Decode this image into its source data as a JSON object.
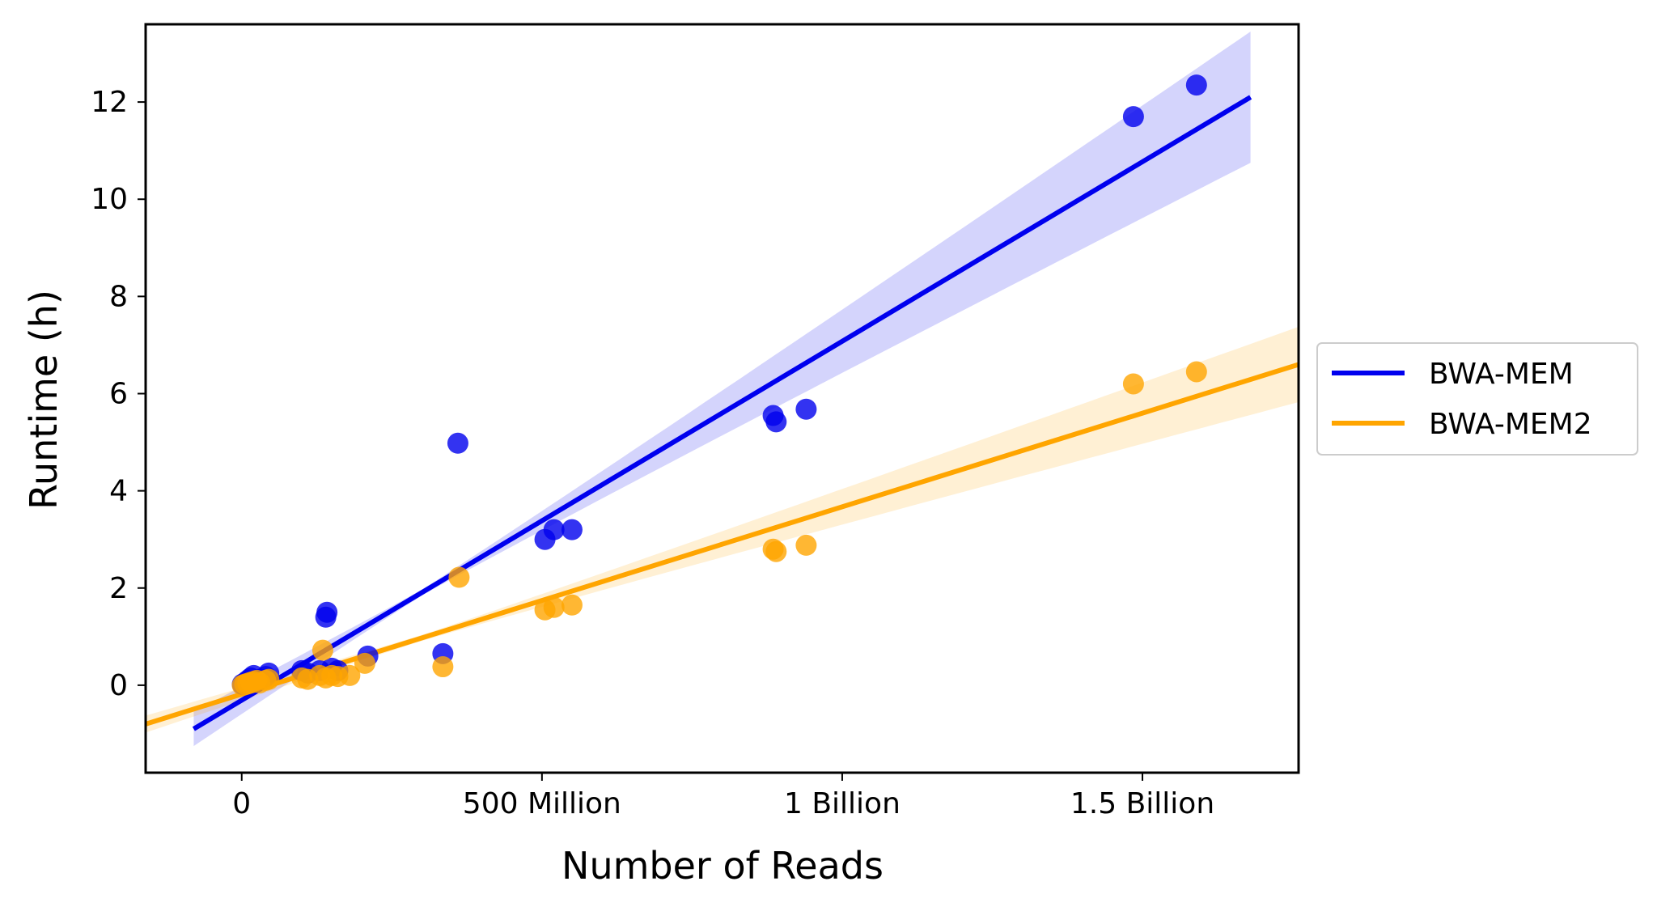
{
  "chart_data": {
    "type": "scatter",
    "title": "",
    "xlabel": "Number of Reads",
    "ylabel": "Runtime (h)",
    "xlim": [
      -160000000,
      1760000000
    ],
    "ylim": [
      -1.8,
      13.6
    ],
    "x_ticks": [
      {
        "value": 0,
        "label": "0"
      },
      {
        "value": 500000000,
        "label": "500 Million"
      },
      {
        "value": 1000000000,
        "label": "1 Billion"
      },
      {
        "value": 1500000000,
        "label": "1.5 Billion"
      }
    ],
    "y_ticks": [
      {
        "value": 0,
        "label": "0"
      },
      {
        "value": 2,
        "label": "2"
      },
      {
        "value": 4,
        "label": "4"
      },
      {
        "value": 6,
        "label": "6"
      },
      {
        "value": 8,
        "label": "8"
      },
      {
        "value": 10,
        "label": "10"
      },
      {
        "value": 12,
        "label": "12"
      }
    ],
    "grid": false,
    "legend_position": "outside-right",
    "series": [
      {
        "name": "BWA-MEM",
        "color": "#0000ee",
        "points": [
          [
            1000000,
            0.02
          ],
          [
            5000000,
            0.05
          ],
          [
            10000000,
            0.1
          ],
          [
            15000000,
            0.15
          ],
          [
            20000000,
            0.2
          ],
          [
            25000000,
            0.08
          ],
          [
            30000000,
            0.12
          ],
          [
            40000000,
            0.18
          ],
          [
            45000000,
            0.25
          ],
          [
            100000000,
            0.3
          ],
          [
            110000000,
            0.25
          ],
          [
            130000000,
            0.3
          ],
          [
            140000000,
            1.4
          ],
          [
            142000000,
            1.5
          ],
          [
            150000000,
            0.35
          ],
          [
            160000000,
            0.3
          ],
          [
            210000000,
            0.6
          ],
          [
            335000000,
            0.65
          ],
          [
            360000000,
            4.98
          ],
          [
            505000000,
            3.0
          ],
          [
            520000000,
            3.2
          ],
          [
            550000000,
            3.2
          ],
          [
            885000000,
            5.55
          ],
          [
            890000000,
            5.42
          ],
          [
            940000000,
            5.68
          ],
          [
            1485000000,
            11.7
          ],
          [
            1590000000,
            12.35
          ]
        ],
        "fit": {
          "x_start": -80000000,
          "x_end": 1680000000,
          "y_start": -0.9,
          "y_end": 12.1
        },
        "ci_end": {
          "x": 1680000000,
          "lower": 10.1,
          "upper": 12.8
        }
      },
      {
        "name": "BWA-MEM2",
        "color": "#ffa500",
        "points": [
          [
            1000000,
            0.0
          ],
          [
            5000000,
            0.02
          ],
          [
            10000000,
            0.04
          ],
          [
            15000000,
            0.06
          ],
          [
            20000000,
            0.08
          ],
          [
            25000000,
            0.1
          ],
          [
            30000000,
            0.05
          ],
          [
            40000000,
            0.1
          ],
          [
            45000000,
            0.12
          ],
          [
            100000000,
            0.15
          ],
          [
            110000000,
            0.12
          ],
          [
            130000000,
            0.2
          ],
          [
            135000000,
            0.72
          ],
          [
            140000000,
            0.15
          ],
          [
            150000000,
            0.2
          ],
          [
            160000000,
            0.18
          ],
          [
            180000000,
            0.2
          ],
          [
            205000000,
            0.45
          ],
          [
            335000000,
            0.38
          ],
          [
            362000000,
            2.22
          ],
          [
            505000000,
            1.55
          ],
          [
            520000000,
            1.6
          ],
          [
            550000000,
            1.65
          ],
          [
            885000000,
            2.8
          ],
          [
            890000000,
            2.75
          ],
          [
            940000000,
            2.88
          ],
          [
            1485000000,
            6.2
          ],
          [
            1590000000,
            6.45
          ]
        ],
        "fit": {
          "x_start": -160000000,
          "x_end": 1760000000,
          "y_start": -0.8,
          "y_end": 6.6
        },
        "ci_start": {
          "x": -160000000,
          "lower": -0.95,
          "upper": -0.6
        },
        "ci_end": {
          "x": 1760000000,
          "lower": 5.45,
          "upper": 7.0
        }
      }
    ]
  }
}
